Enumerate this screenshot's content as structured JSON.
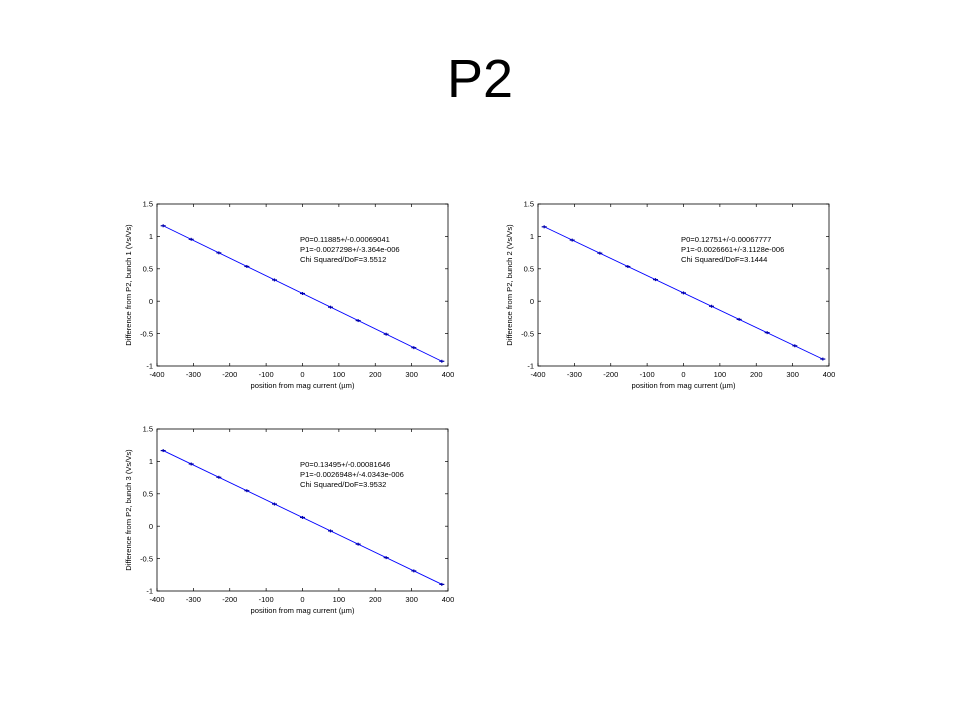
{
  "slide": {
    "title": "P2"
  },
  "colors": {
    "line": "#0000ff",
    "marker": "#0000aa",
    "axis": "#000000",
    "background": "#ffffff"
  },
  "chart_data": [
    {
      "type": "scatter",
      "fit": "linear",
      "xlabel": "position from mag current (µm)",
      "ylabel": "Difference from P2, bunch 1 (Vs/Vs)",
      "xlim": [
        -400,
        400
      ],
      "ylim": [
        -1,
        1.5
      ],
      "xticks": [
        "-400",
        "-300",
        "-200",
        "-100",
        "0",
        "100",
        "200",
        "300",
        "400"
      ],
      "yticks": [
        "-1",
        "-0.5",
        "0",
        "0.5",
        "1",
        "1.5"
      ],
      "annotation": [
        "P0=0.11885+/-0.00069041",
        "P1=-0.0027298+/-3.364e-006",
        "Chi Squared/DoF=3.5512"
      ],
      "intercept": 0.11885,
      "slope": -0.0027298,
      "x": [
        -383,
        -306,
        -230,
        -153,
        -77,
        0,
        77,
        153,
        230,
        306,
        383
      ],
      "y": [
        1.164,
        0.955,
        0.746,
        0.536,
        0.328,
        0.119,
        -0.092,
        -0.299,
        -0.509,
        -0.717,
        -0.927
      ]
    },
    {
      "type": "scatter",
      "fit": "linear",
      "xlabel": "position from mag current (µm)",
      "ylabel": "Difference from P2, bunch 2 (Vs/Vs)",
      "xlim": [
        -400,
        400
      ],
      "ylim": [
        -1,
        1.5
      ],
      "xticks": [
        "-400",
        "-300",
        "-200",
        "-100",
        "0",
        "100",
        "200",
        "300",
        "400"
      ],
      "yticks": [
        "-1",
        "-0.5",
        "0",
        "0.5",
        "1",
        "1.5"
      ],
      "annotation": [
        "P0=0.12751+/-0.00067777",
        "P1=-0.0026661+/-3.1128e-006",
        "Chi Squared/DoF=3.1444"
      ],
      "intercept": 0.12751,
      "slope": -0.0026661,
      "x": [
        -383,
        -306,
        -230,
        -153,
        -77,
        0,
        77,
        153,
        230,
        306,
        383
      ],
      "y": [
        1.148,
        0.943,
        0.741,
        0.535,
        0.333,
        0.128,
        -0.078,
        -0.281,
        -0.485,
        -0.688,
        -0.893
      ]
    },
    {
      "type": "scatter",
      "fit": "linear",
      "xlabel": "position from mag current (µm)",
      "ylabel": "Difference from P2, bunch 3 (Vs/Vs)",
      "xlim": [
        -400,
        400
      ],
      "ylim": [
        -1,
        1.5
      ],
      "xticks": [
        "-400",
        "-300",
        "-200",
        "-100",
        "0",
        "100",
        "200",
        "300",
        "400"
      ],
      "yticks": [
        "-1",
        "-0.5",
        "0",
        "0.5",
        "1",
        "1.5"
      ],
      "annotation": [
        "P0=0.13495+/-0.00081646",
        "P1=-0.0026948+/-4.0343e-006",
        "Chi Squared/DoF=3.9532"
      ],
      "intercept": 0.13495,
      "slope": -0.0026948,
      "x": [
        -383,
        -306,
        -230,
        -153,
        -77,
        0,
        77,
        153,
        230,
        306,
        383
      ],
      "y": [
        1.167,
        0.96,
        0.755,
        0.548,
        0.342,
        0.135,
        -0.073,
        -0.277,
        -0.485,
        -0.69,
        -0.898
      ]
    }
  ]
}
